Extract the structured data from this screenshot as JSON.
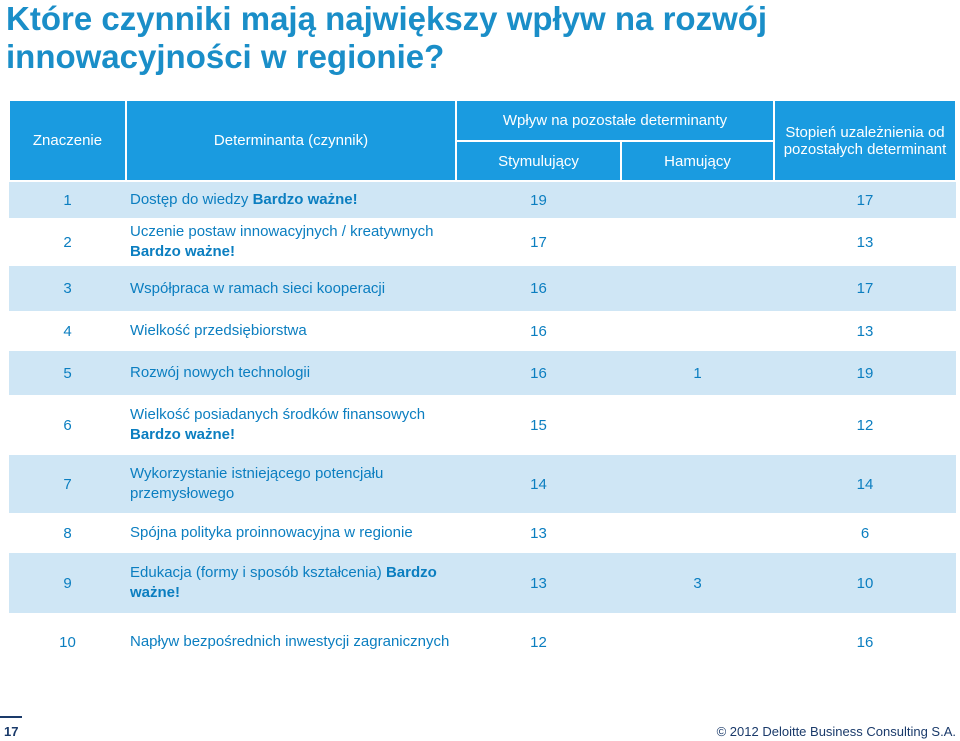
{
  "title": "Które czynniki mają największy wpływ na rozwój innowacyjności w regionie?",
  "headers": {
    "significance": "Znaczenie",
    "determinant": "Determinanta (czynnik)",
    "impact_group": "Wpływ na pozostałe determinanty",
    "stimulating": "Stymulujący",
    "inhibiting": "Hamujący",
    "dependency": "Stopień uzależnienia od pozostałych determinant"
  },
  "rows": [
    {
      "num": "1",
      "name": "Dostęp do wiedzy",
      "important": "Bardzo ważne!",
      "stim": "19",
      "inhib": "",
      "dep": "17"
    },
    {
      "num": "2",
      "name": "Uczenie postaw innowacyjnych / kreatywnych",
      "important": "Bardzo ważne!",
      "stim": "17",
      "inhib": "",
      "dep": "13"
    },
    {
      "num": "3",
      "name": "Współpraca w ramach sieci kooperacji",
      "important": "",
      "stim": "16",
      "inhib": "",
      "dep": "17"
    },
    {
      "num": "4",
      "name": "Wielkość przedsiębiorstwa",
      "important": "",
      "stim": "16",
      "inhib": "",
      "dep": "13"
    },
    {
      "num": "5",
      "name": "Rozwój nowych technologii",
      "important": "",
      "stim": "16",
      "inhib": "1",
      "dep": "19"
    },
    {
      "num": "6",
      "name": "Wielkość posiadanych środków finansowych",
      "important": "Bardzo ważne!",
      "stim": "15",
      "inhib": "",
      "dep": "12"
    },
    {
      "num": "7",
      "name": "Wykorzystanie istniejącego potencjału przemysłowego",
      "important": "",
      "stim": "14",
      "inhib": "",
      "dep": "14"
    },
    {
      "num": "8",
      "name": "Spójna polityka proinnowacyjna w regionie",
      "important": "",
      "stim": "13",
      "inhib": "",
      "dep": "6"
    },
    {
      "num": "9",
      "name": "Edukacja (formy i sposób kształcenia)",
      "important": "Bardzo ważne!",
      "stim": "13",
      "inhib": "3",
      "dep": "10"
    },
    {
      "num": "10",
      "name": "Napływ bezpośrednich inwestycji zagranicznych",
      "important": "",
      "stim": "12",
      "inhib": "",
      "dep": "16"
    }
  ],
  "footer": {
    "page": "17",
    "copyright": "© 2012 Deloitte Business Consulting S.A."
  }
}
